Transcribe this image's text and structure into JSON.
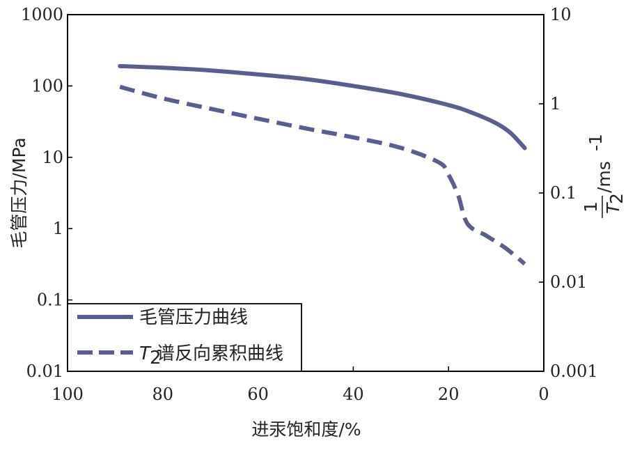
{
  "chart_data": {
    "type": "line",
    "x": {
      "label": "进汞饱和度/%",
      "range": [
        100,
        0
      ],
      "ticks": [
        "100",
        "80",
        "60",
        "40",
        "20",
        "0"
      ]
    },
    "y_left": {
      "label": "毛管压力/MPa",
      "scale": "log",
      "range": [
        0.01,
        1000
      ],
      "ticks": [
        "1000",
        "100",
        "10",
        "1",
        "0.1",
        "0.01"
      ]
    },
    "y_right": {
      "label_num": "1",
      "label_den": "T",
      "label_den_sub": "2",
      "label_unit": "/ms",
      "label_unit_sup": "-1",
      "scale": "log",
      "range": [
        0.001,
        10
      ],
      "ticks": [
        "10",
        "1",
        "0.1",
        "0.01",
        "0.001"
      ]
    },
    "series": [
      {
        "name": "毛管压力曲线",
        "axis": "left",
        "style": "solid",
        "color": "#5a5e8e",
        "points": [
          [
            89,
            190
          ],
          [
            80,
            180
          ],
          [
            70,
            165
          ],
          [
            60,
            145
          ],
          [
            50,
            125
          ],
          [
            40,
            100
          ],
          [
            30,
            77
          ],
          [
            20,
            54
          ],
          [
            15,
            42
          ],
          [
            10,
            30
          ],
          [
            7,
            22
          ],
          [
            4,
            13.5
          ]
        ]
      },
      {
        "name_prefix": "T",
        "name_sub": "2",
        "name_suffix": "谱反向累积曲线",
        "axis": "right",
        "style": "dashed",
        "color": "#5a5e8e",
        "points": [
          [
            89,
            1.55
          ],
          [
            80,
            1.15
          ],
          [
            70,
            0.88
          ],
          [
            60,
            0.68
          ],
          [
            50,
            0.53
          ],
          [
            40,
            0.42
          ],
          [
            30,
            0.32
          ],
          [
            22,
            0.22
          ],
          [
            20,
            0.16
          ],
          [
            18,
            0.095
          ],
          [
            16,
            0.045
          ],
          [
            12,
            0.033
          ],
          [
            8,
            0.024
          ],
          [
            4,
            0.016
          ]
        ]
      }
    ],
    "legend": {
      "placement": "bottom-left",
      "label_line": "毛管压力曲线",
      "label_dash_prefix": "T",
      "label_dash_sub": "2",
      "label_dash_suffix": "谱反向累积曲线"
    },
    "grid": false
  }
}
